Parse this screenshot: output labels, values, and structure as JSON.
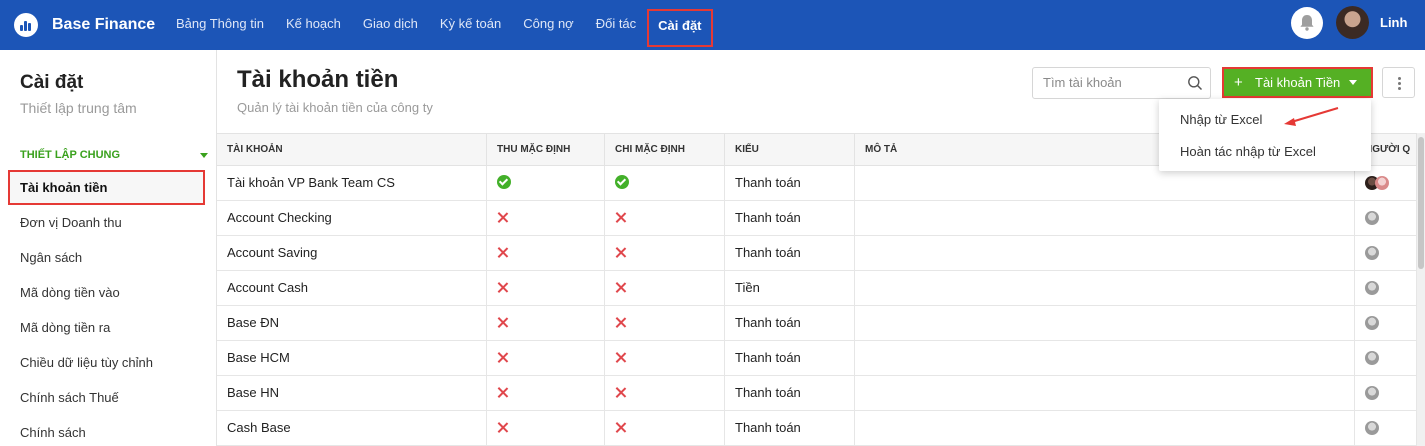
{
  "app": {
    "name": "Base Finance",
    "user": "Linh"
  },
  "nav": [
    {
      "label": "Bảng Thông tin"
    },
    {
      "label": "Kế hoạch"
    },
    {
      "label": "Giao dịch"
    },
    {
      "label": "Kỳ kế toán"
    },
    {
      "label": "Công nợ"
    },
    {
      "label": "Đối tác"
    },
    {
      "label": "Cài đặt",
      "active": true
    }
  ],
  "sidebar": {
    "title": "Cài đặt",
    "subtitle": "Thiết lập trung tâm",
    "section": "THIẾT LẬP CHUNG",
    "items": [
      {
        "label": "Tài khoản tiền",
        "active": true
      },
      {
        "label": "Đơn vị Doanh thu"
      },
      {
        "label": "Ngân sách"
      },
      {
        "label": "Mã dòng tiền vào"
      },
      {
        "label": "Mã dòng tiền ra"
      },
      {
        "label": "Chiều dữ liệu tùy chỉnh"
      },
      {
        "label": "Chính sách Thuế"
      },
      {
        "label": "Chính sách"
      }
    ]
  },
  "header": {
    "title": "Tài khoản tiền",
    "subtitle": "Quản lý tài khoản tiền của công ty",
    "search_placeholder": "Tìm tài khoản",
    "add_button": "Tài khoản Tiền"
  },
  "dropdown": {
    "items": [
      "Nhập từ Excel",
      "Hoàn tác nhập từ Excel"
    ]
  },
  "table": {
    "columns": [
      "TÀI KHOẢN",
      "THU MẶC ĐỊNH",
      "CHI MẶC ĐỊNH",
      "KIỂU",
      "MÔ TẢ",
      "NGƯỜI Q"
    ],
    "rows": [
      {
        "account": "Tài khoản VP Bank Team CS",
        "thu": true,
        "chi": true,
        "type": "Thanh toán",
        "desc": ""
      },
      {
        "account": "Account Checking",
        "thu": false,
        "chi": false,
        "type": "Thanh toán",
        "desc": ""
      },
      {
        "account": "Account Saving",
        "thu": false,
        "chi": false,
        "type": "Thanh toán",
        "desc": ""
      },
      {
        "account": "Account Cash",
        "thu": false,
        "chi": false,
        "type": "Tiền",
        "desc": ""
      },
      {
        "account": "Base ĐN",
        "thu": false,
        "chi": false,
        "type": "Thanh toán",
        "desc": ""
      },
      {
        "account": "Base HCM",
        "thu": false,
        "chi": false,
        "type": "Thanh toán",
        "desc": ""
      },
      {
        "account": "Base HN",
        "thu": false,
        "chi": false,
        "type": "Thanh toán",
        "desc": ""
      },
      {
        "account": "Cash Base",
        "thu": false,
        "chi": false,
        "type": "Thanh toán",
        "desc": ""
      }
    ]
  },
  "colors": {
    "nav_bg": "#1c55b7",
    "accent_green": "#55b024",
    "highlight_red": "#e53935"
  }
}
